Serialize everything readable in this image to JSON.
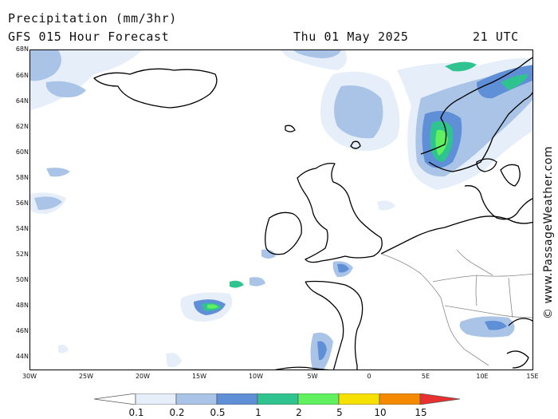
{
  "header": {
    "title": "Precipitation (mm/3hr)",
    "subtitle": "GFS 015 Hour Forecast",
    "date": "Thu 01 May 2025",
    "time": "21 UTC"
  },
  "axes": {
    "lat_labels": [
      "68N",
      "66N",
      "64N",
      "62N",
      "60N",
      "58N",
      "56N",
      "54N",
      "52N",
      "50N",
      "48N",
      "46N",
      "44N"
    ],
    "lon_labels": [
      "30W",
      "25W",
      "20W",
      "15W",
      "10W",
      "5W",
      "0",
      "5E",
      "10E",
      "15E"
    ]
  },
  "legend": {
    "labels": [
      "0.1",
      "0.2",
      "0.5",
      "1",
      "2",
      "5",
      "10",
      "15"
    ],
    "colors": [
      "#ffffff",
      "#e6eefa",
      "#a9c4e6",
      "#5f8fd6",
      "#2fc48f",
      "#60f060",
      "#f5e000",
      "#f58a00",
      "#e83030"
    ]
  },
  "copyright": "© www.PassageWeather.com"
}
